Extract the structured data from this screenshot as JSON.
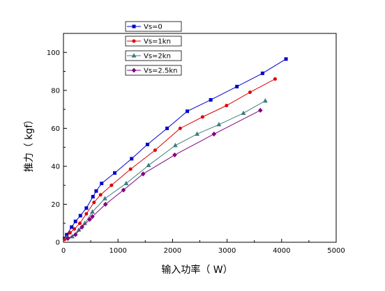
{
  "chart_data": {
    "type": "line",
    "xlabel": "输入功率（ W）",
    "ylabel": "推力（ kgf）",
    "xlim": [
      0,
      5000
    ],
    "ylim": [
      0,
      110
    ],
    "xticks": [
      0,
      1000,
      2000,
      3000,
      4000,
      5000
    ],
    "yticks": [
      0,
      20,
      40,
      60,
      80,
      100
    ],
    "grid": false,
    "legend": "top-left",
    "series": [
      {
        "name": "Vs=0",
        "color": "#0000cc",
        "marker": "square",
        "x": [
          20,
          60,
          150,
          220,
          310,
          420,
          540,
          600,
          700,
          940,
          1250,
          1540,
          1900,
          2270,
          2700,
          3180,
          3650,
          4080
        ],
        "y": [
          2,
          4,
          8,
          11,
          14,
          18,
          24,
          27,
          31,
          36.5,
          44,
          51.5,
          60,
          69,
          75,
          82,
          89,
          96.5
        ]
      },
      {
        "name": "Vs=1kn",
        "color": "#dd0000",
        "marker": "circle",
        "x": [
          20,
          120,
          200,
          300,
          420,
          560,
          680,
          880,
          1230,
          1680,
          2140,
          2550,
          2990,
          3420,
          3880
        ],
        "y": [
          1.5,
          5,
          7,
          10,
          15,
          21,
          25,
          30,
          38.5,
          48.5,
          60,
          66,
          72,
          79,
          86
        ]
      },
      {
        "name": "Vs=2kn",
        "color": "#3b7f7f",
        "marker": "triangle",
        "x": [
          60,
          160,
          280,
          390,
          530,
          760,
          1150,
          1560,
          2050,
          2450,
          2850,
          3300,
          3700
        ],
        "y": [
          2.5,
          3,
          6.5,
          10,
          16,
          23,
          31,
          40.5,
          51,
          57,
          62,
          68,
          74.5
        ]
      },
      {
        "name": "Vs=2.5kn",
        "color": "#800080",
        "marker": "diamond",
        "x": [
          80,
          220,
          340,
          480,
          530,
          770,
          1100,
          1460,
          2040,
          2760,
          3610
        ],
        "y": [
          2,
          4,
          8,
          12,
          13.5,
          20,
          27.5,
          36,
          46,
          57,
          69.5
        ]
      }
    ]
  }
}
